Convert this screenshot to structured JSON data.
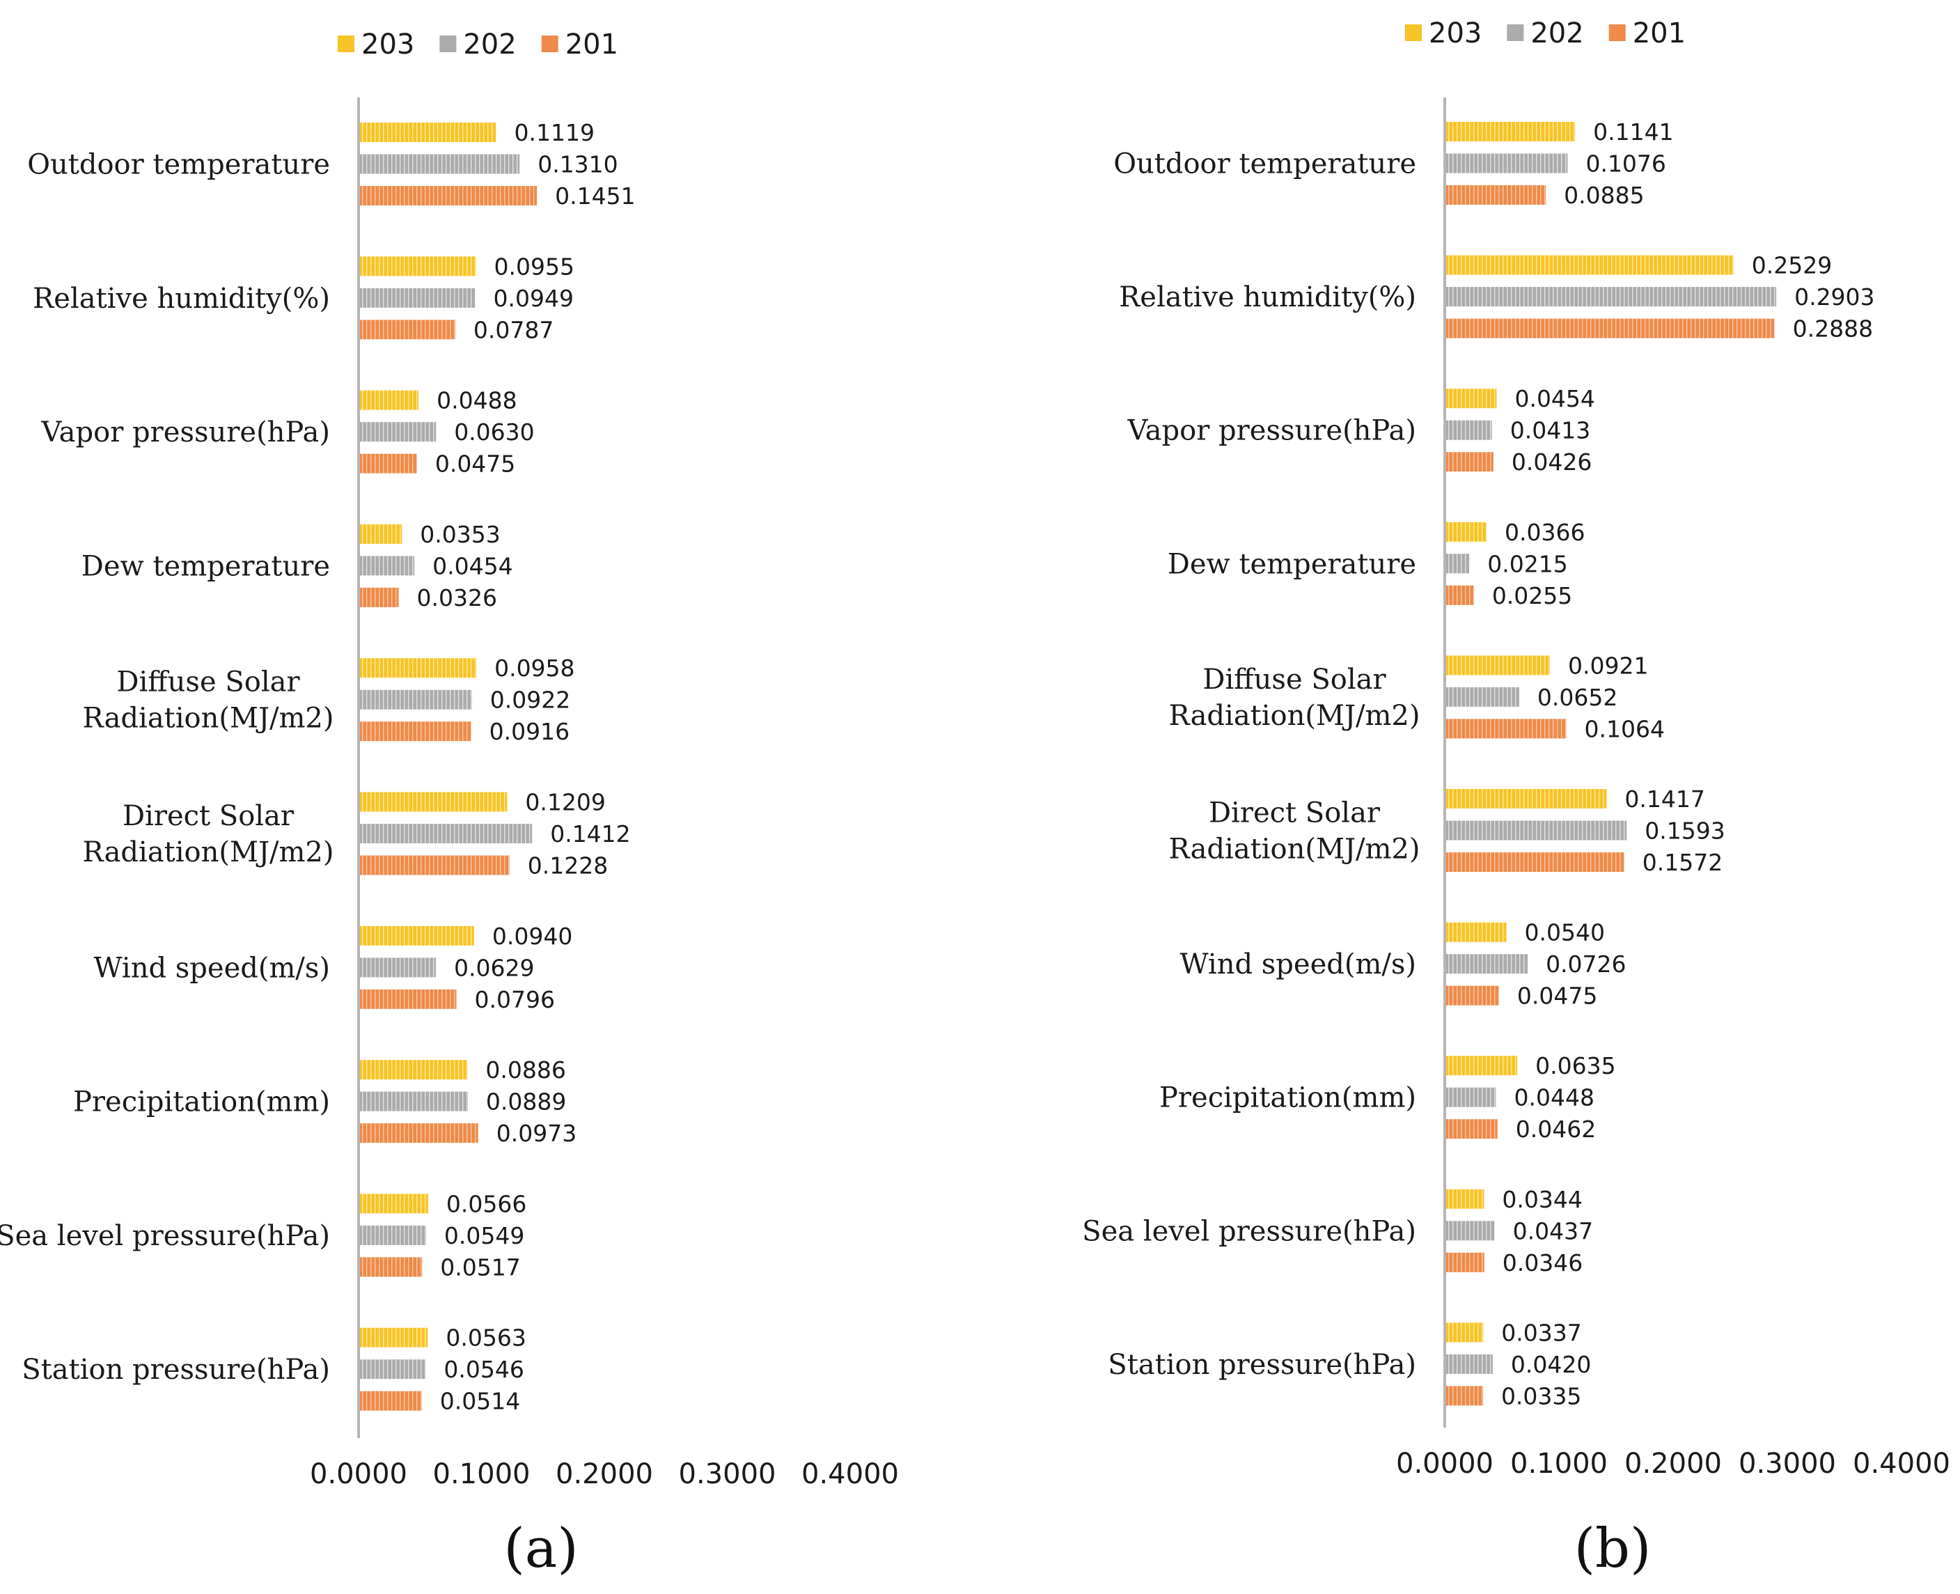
{
  "chart_data": [
    {
      "type": "bar",
      "orientation": "horizontal",
      "panel_label": "(a)",
      "categories": [
        "Outdoor temperature",
        "Relative humidity(%)",
        "Vapor pressure(hPa)",
        "Dew temperature",
        "Diffuse Solar Radiation(MJ/m2)",
        "Direct Solar Radiation(MJ/m2)",
        "Wind speed(m/s)",
        "Precipitation(mm)",
        "Sea level pressure(hPa)",
        "Station pressure(hPa)"
      ],
      "category_lines": [
        [
          "Outdoor temperature"
        ],
        [
          "Relative humidity(%)"
        ],
        [
          "Vapor pressure(hPa)"
        ],
        [
          "Dew temperature"
        ],
        [
          "Diffuse Solar",
          "Radiation(MJ/m2)"
        ],
        [
          "Direct Solar",
          "Radiation(MJ/m2)"
        ],
        [
          "Wind speed(m/s)"
        ],
        [
          "Precipitation(mm)"
        ],
        [
          "Sea level pressure(hPa)"
        ],
        [
          "Station pressure(hPa)"
        ]
      ],
      "series": [
        {
          "name": "203",
          "values": [
            0.1119,
            0.0955,
            0.0488,
            0.0353,
            0.0958,
            0.1209,
            0.094,
            0.0886,
            0.0566,
            0.0563
          ],
          "labels": [
            "0.1119",
            "0.0955",
            "0.0488",
            "0.0353",
            "0.0958",
            "0.1209",
            "0.0940",
            "0.0886",
            "0.0566",
            "0.0563"
          ]
        },
        {
          "name": "202",
          "values": [
            0.131,
            0.0949,
            0.063,
            0.0454,
            0.0922,
            0.1412,
            0.0629,
            0.0889,
            0.0549,
            0.0546
          ],
          "labels": [
            "0.1310",
            "0.0949",
            "0.0630",
            "0.0454",
            "0.0922",
            "0.1412",
            "0.0629",
            "0.0889",
            "0.0549",
            "0.0546"
          ]
        },
        {
          "name": "201",
          "values": [
            0.1451,
            0.0787,
            0.0475,
            0.0326,
            0.0916,
            0.1228,
            0.0796,
            0.0973,
            0.0517,
            0.0514
          ],
          "labels": [
            "0.1451",
            "0.0787",
            "0.0475",
            "0.0326",
            "0.0916",
            "0.1228",
            "0.0796",
            "0.0973",
            "0.0517",
            "0.0514"
          ]
        }
      ],
      "xlim": [
        0,
        0.4
      ],
      "xticks": [
        0,
        0.1,
        0.2,
        0.3,
        0.4
      ],
      "xtick_labels": [
        "0.0000",
        "0.1000",
        "0.2000",
        "0.3000",
        "0.4000"
      ],
      "legend_position": "top"
    },
    {
      "type": "bar",
      "orientation": "horizontal",
      "panel_label": "(b)",
      "categories": [
        "Outdoor temperature",
        "Relative humidity(%)",
        "Vapor pressure(hPa)",
        "Dew temperature",
        "Diffuse Solar Radiation(MJ/m2)",
        "Direct Solar Radiation(MJ/m2)",
        "Wind speed(m/s)",
        "Precipitation(mm)",
        "Sea level pressure(hPa)",
        "Station pressure(hPa)"
      ],
      "category_lines": [
        [
          "Outdoor temperature"
        ],
        [
          "Relative humidity(%)"
        ],
        [
          "Vapor pressure(hPa)"
        ],
        [
          "Dew temperature"
        ],
        [
          "Diffuse Solar",
          "Radiation(MJ/m2)"
        ],
        [
          "Direct Solar",
          "Radiation(MJ/m2)"
        ],
        [
          "Wind speed(m/s)"
        ],
        [
          "Precipitation(mm)"
        ],
        [
          "Sea level pressure(hPa)"
        ],
        [
          "Station pressure(hPa)"
        ]
      ],
      "series": [
        {
          "name": "203",
          "values": [
            0.1141,
            0.2529,
            0.0454,
            0.0366,
            0.0921,
            0.1417,
            0.054,
            0.0635,
            0.0344,
            0.0337
          ],
          "labels": [
            "0.1141",
            "0.2529",
            "0.0454",
            "0.0366",
            "0.0921",
            "0.1417",
            "0.0540",
            "0.0635",
            "0.0344",
            "0.0337"
          ]
        },
        {
          "name": "202",
          "values": [
            0.1076,
            0.2903,
            0.0413,
            0.0215,
            0.0652,
            0.1593,
            0.0726,
            0.0448,
            0.0437,
            0.042
          ],
          "labels": [
            "0.1076",
            "0.2903",
            "0.0413",
            "0.0215",
            "0.0652",
            "0.1593",
            "0.0726",
            "0.0448",
            "0.0437",
            "0.0420"
          ]
        },
        {
          "name": "201",
          "values": [
            0.0885,
            0.2888,
            0.0426,
            0.0255,
            0.1064,
            0.1572,
            0.0475,
            0.0462,
            0.0346,
            0.0335
          ],
          "labels": [
            "0.0885",
            "0.2888",
            "0.0426",
            "0.0255",
            "0.1064",
            "0.1572",
            "0.0475",
            "0.0462",
            "0.0346",
            "0.0335"
          ]
        }
      ],
      "xlim": [
        0,
        0.4
      ],
      "xticks": [
        0,
        0.1,
        0.2,
        0.3,
        0.4
      ],
      "xtick_labels": [
        "0.0000",
        "0.1000",
        "0.2000",
        "0.3000",
        "0.4000"
      ],
      "legend_position": "top"
    }
  ],
  "colors": {
    "series_203": "#f7c427",
    "series_202": "#ababab",
    "series_201": "#ee8a4a",
    "axis": "#b5b5b5"
  }
}
